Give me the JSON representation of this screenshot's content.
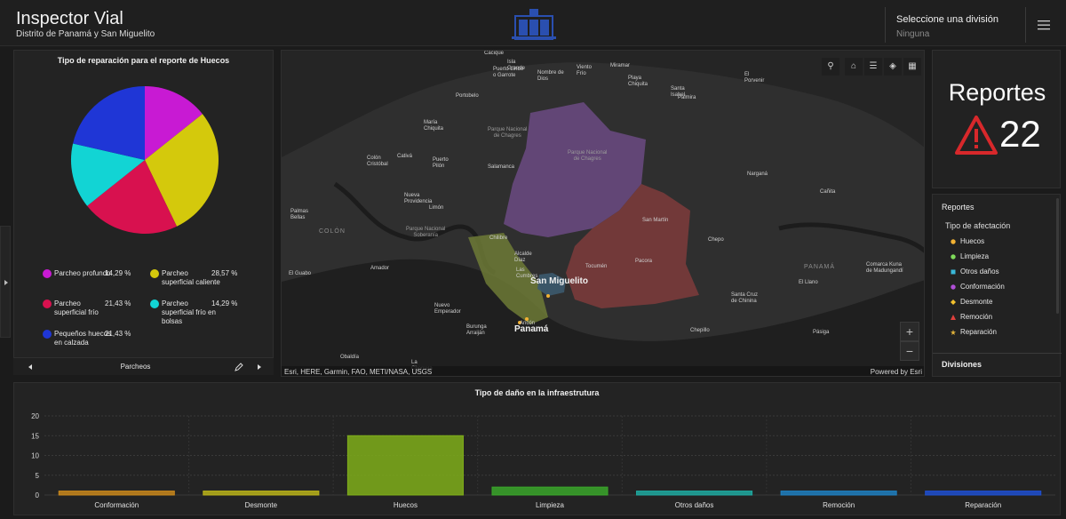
{
  "header": {
    "title": "Inspector Vial",
    "subtitle": "Distrito de Panamá y San Miguelito",
    "division_label": "Seleccione una división",
    "division_value": "Ninguna"
  },
  "pie_panel": {
    "title": "Tipo de reparación para el reporte de Huecos",
    "footer_label": "Parcheos",
    "chart_data": {
      "type": "pie",
      "title": "Tipo de reparación para el reporte de Huecos",
      "slices": [
        {
          "name": "Parcheo profundo",
          "value": 14.29,
          "label": "14,29 %",
          "color": "#c81ad3"
        },
        {
          "name": "Parcheo superficial caliente",
          "value": 28.57,
          "label": "28,57 %",
          "color": "#d4c90c"
        },
        {
          "name": "Parcheo superficial frío",
          "value": 21.43,
          "label": "21,43 %",
          "color": "#d8114f"
        },
        {
          "name": "Parcheo superficial frío en bolsas",
          "value": 14.29,
          "label": "14,29 %",
          "color": "#12d4d4"
        },
        {
          "name": "Pequeños huecos en calzada",
          "value": 21.43,
          "label": "21,43 %",
          "color": "#1f36d6"
        }
      ]
    }
  },
  "map": {
    "attribution": "Esri, HERE, Garmin, FAO, METI/NASA, USGS",
    "powered_by": "Powered by Esri",
    "zoom_in": "+",
    "zoom_out": "−",
    "places": [
      {
        "name": "Cacique",
        "cls": ""
      },
      {
        "name": "Isla Grande",
        "cls": ""
      },
      {
        "name": "Puerto Lindo o Garrote",
        "cls": ""
      },
      {
        "name": "Nombre de Dios",
        "cls": ""
      },
      {
        "name": "Viento Frío",
        "cls": ""
      },
      {
        "name": "Miramar",
        "cls": ""
      },
      {
        "name": "El Porvenir",
        "cls": ""
      },
      {
        "name": "Playa Chiquita",
        "cls": ""
      },
      {
        "name": "Santa Isabel",
        "cls": ""
      },
      {
        "name": "Palmira",
        "cls": ""
      },
      {
        "name": "Portobelo",
        "cls": ""
      },
      {
        "name": "María Chiquita",
        "cls": ""
      },
      {
        "name": "Parque Nacional de Chagres",
        "cls": "park"
      },
      {
        "name": "Parque Nacional de Chagres",
        "cls": "park"
      },
      {
        "name": "Colón Cristóbal",
        "cls": ""
      },
      {
        "name": "Cativá",
        "cls": ""
      },
      {
        "name": "Puerto Pilón",
        "cls": ""
      },
      {
        "name": "Salamanca",
        "cls": ""
      },
      {
        "name": "Narganá",
        "cls": ""
      },
      {
        "name": "Cañita",
        "cls": ""
      },
      {
        "name": "Nueva Providencia",
        "cls": ""
      },
      {
        "name": "Limón",
        "cls": ""
      },
      {
        "name": "Palmas Bellas",
        "cls": ""
      },
      {
        "name": "COLÓN",
        "cls": "region"
      },
      {
        "name": "Parque Nacional Soberanía",
        "cls": "park"
      },
      {
        "name": "Chilibre",
        "cls": ""
      },
      {
        "name": "San Martín",
        "cls": ""
      },
      {
        "name": "Chepo",
        "cls": ""
      },
      {
        "name": "Amador",
        "cls": ""
      },
      {
        "name": "Alcalde Díaz",
        "cls": ""
      },
      {
        "name": "Las Cumbres",
        "cls": ""
      },
      {
        "name": "Tocumén",
        "cls": ""
      },
      {
        "name": "Pacora",
        "cls": ""
      },
      {
        "name": "PANAMÁ",
        "cls": "region"
      },
      {
        "name": "Comarca Kuna de Madungandí",
        "cls": ""
      },
      {
        "name": "El Guabo",
        "cls": ""
      },
      {
        "name": "San Miguelito",
        "cls": "big"
      },
      {
        "name": "El Llano",
        "cls": ""
      },
      {
        "name": "Santa Cruz de Chinina",
        "cls": ""
      },
      {
        "name": "Nuevo Emperador",
        "cls": ""
      },
      {
        "name": "Ancón",
        "cls": ""
      },
      {
        "name": "Panamá",
        "cls": "big"
      },
      {
        "name": "Burunga Arraiján",
        "cls": ""
      },
      {
        "name": "Chepillo",
        "cls": ""
      },
      {
        "name": "Pásiga",
        "cls": ""
      },
      {
        "name": "Obaldía",
        "cls": ""
      },
      {
        "name": "La Chorrera",
        "cls": ""
      }
    ]
  },
  "reports": {
    "title": "Reportes",
    "count": "22"
  },
  "legend": {
    "title": "Reportes",
    "subtitle": "Tipo de afectación",
    "items": [
      {
        "label": "Huecos",
        "color": "#f2b233",
        "shape": "dot"
      },
      {
        "label": "Limpieza",
        "color": "#7fdc5a",
        "shape": "dot"
      },
      {
        "label": "Otros daños",
        "color": "#39b8d8",
        "shape": "square"
      },
      {
        "label": "Conformación",
        "color": "#b14fd8",
        "shape": "dot"
      },
      {
        "label": "Desmonte",
        "color": "#f2c12e",
        "shape": "diamond"
      },
      {
        "label": "Remoción",
        "color": "#e0403c",
        "shape": "triangle"
      },
      {
        "label": "Reparación",
        "color": "#e0b23a",
        "shape": "star"
      }
    ],
    "divisions_title": "Divisiones"
  },
  "bar_panel": {
    "title": "Tipo de daño en la infraestrutura",
    "chart_data": {
      "type": "bar",
      "title": "Tipo de daño en la infraestrutura",
      "categories": [
        "Conformación",
        "Desmonte",
        "Huecos",
        "Limpieza",
        "Otros daños",
        "Remoción",
        "Reparación"
      ],
      "values": [
        1,
        1,
        15,
        2,
        1,
        1,
        1
      ],
      "colors": [
        "#c8871c",
        "#b9b21a",
        "#7fae1a",
        "#3aa62a",
        "#1fa9a0",
        "#1f7fc0",
        "#1f4fd0"
      ],
      "ylim": [
        0,
        20
      ],
      "yticks": [
        0,
        5,
        10,
        15,
        20
      ],
      "grid": true
    }
  }
}
